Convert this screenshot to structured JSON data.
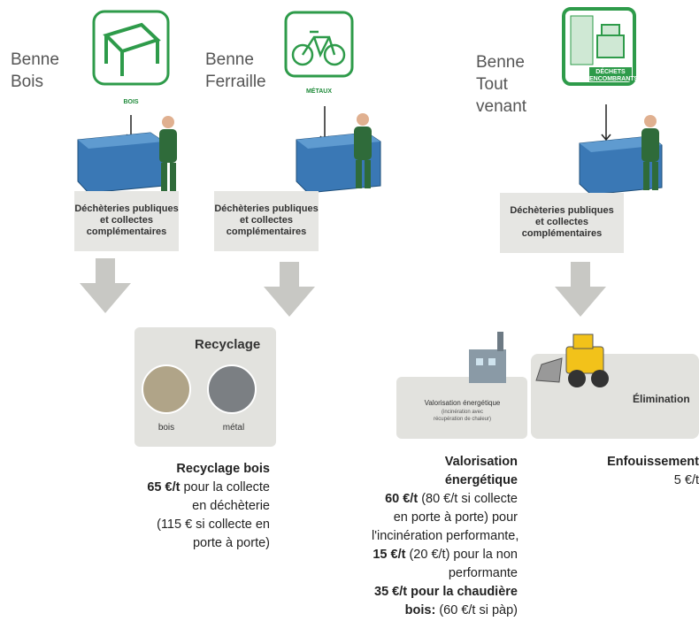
{
  "bins": [
    {
      "label_lines": [
        "Benne",
        "Bois"
      ],
      "icon_lines": [
        "BOIS"
      ],
      "box_lines": [
        "Déchèteries publiques",
        "et collectes",
        "complémentaires"
      ]
    },
    {
      "label_lines": [
        "Benne",
        "Ferraille"
      ],
      "icon_lines": [
        "MÉTAUX"
      ],
      "box_lines": [
        "Déchèteries publiques",
        "et collectes",
        "complémentaires"
      ]
    },
    {
      "label_lines": [
        "Benne",
        "Tout",
        "venant"
      ],
      "icon_lines": [
        "DÉCHETS",
        "ENCOMBRANTS"
      ],
      "box_lines": [
        "Déchèteries publiques",
        "et collectes",
        "complémentaires"
      ]
    }
  ],
  "recyclage": {
    "title": "Recyclage",
    "items": [
      "bois",
      "métal"
    ]
  },
  "valorisation": {
    "title": "Valorisation énergétique",
    "subtitle_lines": [
      "(incinération avec",
      "récupération de chaleur)"
    ]
  },
  "elimination": {
    "title": "Élimination"
  },
  "notes": [
    {
      "lines": [
        [
          {
            "text": "Recyclage bois",
            "bold": true
          }
        ],
        [
          {
            "text": "65 €/t",
            "bold": true
          },
          {
            "text": " pour la collecte",
            "bold": false
          }
        ],
        [
          {
            "text": "en déchèterie",
            "bold": false
          }
        ],
        [
          {
            "text": "(115 € si collecte en",
            "bold": false
          }
        ],
        [
          {
            "text": "porte à porte)",
            "bold": false
          }
        ]
      ]
    },
    {
      "lines": [
        [
          {
            "text": "Valorisation",
            "bold": true
          }
        ],
        [
          {
            "text": "énergétique",
            "bold": true
          }
        ],
        [
          {
            "text": "60 €/t",
            "bold": true
          },
          {
            "text": " (80 €/t si collecte",
            "bold": false
          }
        ],
        [
          {
            "text": "en porte à porte) pour",
            "bold": false
          }
        ],
        [
          {
            "text": "l'incinération performante,",
            "bold": false
          }
        ],
        [
          {
            "text": "15 €/t",
            "bold": true
          },
          {
            "text": " (20 €/t) pour la non",
            "bold": false
          }
        ],
        [
          {
            "text": "performante",
            "bold": false
          }
        ],
        [
          {
            "text": "35 €/t pour la chaudière",
            "bold": true
          }
        ],
        [
          {
            "text": "bois:",
            "bold": true
          },
          {
            "text": " (60 €/t si pàp)",
            "bold": false
          }
        ]
      ]
    },
    {
      "lines": [
        [
          {
            "text": "Enfouissement",
            "bold": true
          }
        ],
        [
          {
            "text": "5 €/t",
            "bold": false
          }
        ]
      ]
    }
  ]
}
